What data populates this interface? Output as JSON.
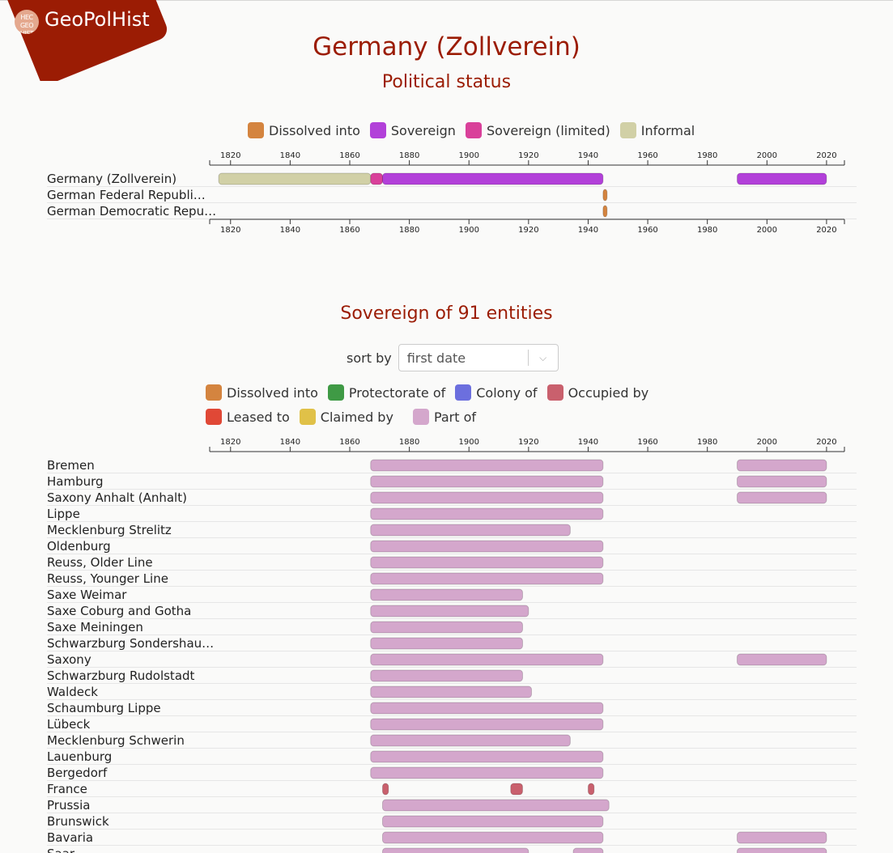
{
  "app": {
    "name": "GeoPolHist",
    "logo_text": "HEC GEO HIST"
  },
  "header": {
    "title": "Germany (Zollverein)",
    "subtitle": "Political status"
  },
  "status_legend": [
    {
      "label": "Dissolved into",
      "color": "#d4843f"
    },
    {
      "label": "Sovereign",
      "color": "#b240d9"
    },
    {
      "label": "Sovereign (limited)",
      "color": "#d9409a"
    },
    {
      "label": "Informal",
      "color": "#d1d0a6"
    }
  ],
  "axis": {
    "min": 1813,
    "max": 2026,
    "ticks": [
      1820,
      1840,
      1860,
      1880,
      1900,
      1920,
      1940,
      1960,
      1980,
      2000,
      2020
    ]
  },
  "status_rows": [
    {
      "label": "Germany (Zollverein)",
      "segments": [
        {
          "start": 1816,
          "end": 1867,
          "status": "Informal"
        },
        {
          "start": 1867,
          "end": 1871,
          "status": "Sovereign (limited)"
        },
        {
          "start": 1871,
          "end": 1945,
          "status": "Sovereign"
        },
        {
          "start": 1990,
          "end": 2020,
          "status": "Sovereign"
        }
      ]
    },
    {
      "label": "German Federal Republi…",
      "segments": [
        {
          "start": 1945,
          "end": 1946,
          "status": "Dissolved into"
        }
      ]
    },
    {
      "label": "German Democratic Repu…",
      "segments": [
        {
          "start": 1945,
          "end": 1946,
          "status": "Dissolved into"
        }
      ]
    }
  ],
  "entities_section": {
    "title": "Sovereign of 91 entities",
    "sort_label": "sort by",
    "sort_value": "first date"
  },
  "relation_legend": [
    {
      "label": "Dissolved into",
      "color": "#d4843f"
    },
    {
      "label": "Protectorate of",
      "color": "#3f9a45"
    },
    {
      "label": "Colony of",
      "color": "#6c6fde"
    },
    {
      "label": "Occupied by",
      "color": "#c9606d"
    },
    {
      "label": "Leased to",
      "color": "#e04836"
    },
    {
      "label": "Claimed by",
      "color": "#e0c148"
    },
    {
      "label": "Part of",
      "color": "#d4a7cc"
    }
  ],
  "entity_rows": [
    {
      "label": "Bremen",
      "segments": [
        {
          "start": 1867,
          "end": 1945,
          "status": "Part of"
        },
        {
          "start": 1990,
          "end": 2020,
          "status": "Part of"
        }
      ]
    },
    {
      "label": "Hamburg",
      "segments": [
        {
          "start": 1867,
          "end": 1945,
          "status": "Part of"
        },
        {
          "start": 1990,
          "end": 2020,
          "status": "Part of"
        }
      ]
    },
    {
      "label": "Saxony Anhalt (Anhalt)",
      "segments": [
        {
          "start": 1867,
          "end": 1945,
          "status": "Part of"
        },
        {
          "start": 1990,
          "end": 2020,
          "status": "Part of"
        }
      ]
    },
    {
      "label": "Lippe",
      "segments": [
        {
          "start": 1867,
          "end": 1945,
          "status": "Part of"
        }
      ]
    },
    {
      "label": "Mecklenburg Strelitz",
      "segments": [
        {
          "start": 1867,
          "end": 1934,
          "status": "Part of"
        }
      ]
    },
    {
      "label": "Oldenburg",
      "segments": [
        {
          "start": 1867,
          "end": 1945,
          "status": "Part of"
        }
      ]
    },
    {
      "label": "Reuss, Older Line",
      "segments": [
        {
          "start": 1867,
          "end": 1945,
          "status": "Part of"
        }
      ]
    },
    {
      "label": "Reuss, Younger Line",
      "segments": [
        {
          "start": 1867,
          "end": 1945,
          "status": "Part of"
        }
      ]
    },
    {
      "label": "Saxe Weimar",
      "segments": [
        {
          "start": 1867,
          "end": 1918,
          "status": "Part of"
        }
      ]
    },
    {
      "label": "Saxe Coburg and Gotha",
      "segments": [
        {
          "start": 1867,
          "end": 1920,
          "status": "Part of"
        }
      ]
    },
    {
      "label": "Saxe Meiningen",
      "segments": [
        {
          "start": 1867,
          "end": 1918,
          "status": "Part of"
        }
      ]
    },
    {
      "label": "Schwarzburg Sondershau…",
      "segments": [
        {
          "start": 1867,
          "end": 1918,
          "status": "Part of"
        }
      ]
    },
    {
      "label": "Saxony",
      "segments": [
        {
          "start": 1867,
          "end": 1945,
          "status": "Part of"
        },
        {
          "start": 1990,
          "end": 2020,
          "status": "Part of"
        }
      ]
    },
    {
      "label": "Schwarzburg Rudolstadt",
      "segments": [
        {
          "start": 1867,
          "end": 1918,
          "status": "Part of"
        }
      ]
    },
    {
      "label": "Waldeck",
      "segments": [
        {
          "start": 1867,
          "end": 1921,
          "status": "Part of"
        }
      ]
    },
    {
      "label": "Schaumburg Lippe",
      "segments": [
        {
          "start": 1867,
          "end": 1945,
          "status": "Part of"
        }
      ]
    },
    {
      "label": "Lübeck",
      "segments": [
        {
          "start": 1867,
          "end": 1945,
          "status": "Part of"
        }
      ]
    },
    {
      "label": "Mecklenburg Schwerin",
      "segments": [
        {
          "start": 1867,
          "end": 1934,
          "status": "Part of"
        }
      ]
    },
    {
      "label": "Lauenburg",
      "segments": [
        {
          "start": 1867,
          "end": 1945,
          "status": "Part of"
        }
      ]
    },
    {
      "label": "Bergedorf",
      "segments": [
        {
          "start": 1867,
          "end": 1945,
          "status": "Part of"
        }
      ]
    },
    {
      "label": "France",
      "segments": [
        {
          "start": 1871,
          "end": 1873,
          "status": "Occupied by"
        },
        {
          "start": 1914,
          "end": 1918,
          "status": "Occupied by"
        },
        {
          "start": 1940,
          "end": 1942,
          "status": "Occupied by"
        }
      ]
    },
    {
      "label": "Prussia",
      "segments": [
        {
          "start": 1871,
          "end": 1947,
          "status": "Part of"
        }
      ]
    },
    {
      "label": "Brunswick",
      "segments": [
        {
          "start": 1871,
          "end": 1945,
          "status": "Part of"
        }
      ]
    },
    {
      "label": "Bavaria",
      "segments": [
        {
          "start": 1871,
          "end": 1945,
          "status": "Part of"
        },
        {
          "start": 1990,
          "end": 2020,
          "status": "Part of"
        }
      ]
    },
    {
      "label": "Saar",
      "segments": [
        {
          "start": 1871,
          "end": 1920,
          "status": "Part of"
        },
        {
          "start": 1935,
          "end": 1945,
          "status": "Part of"
        },
        {
          "start": 1990,
          "end": 2020,
          "status": "Part of"
        }
      ]
    }
  ]
}
